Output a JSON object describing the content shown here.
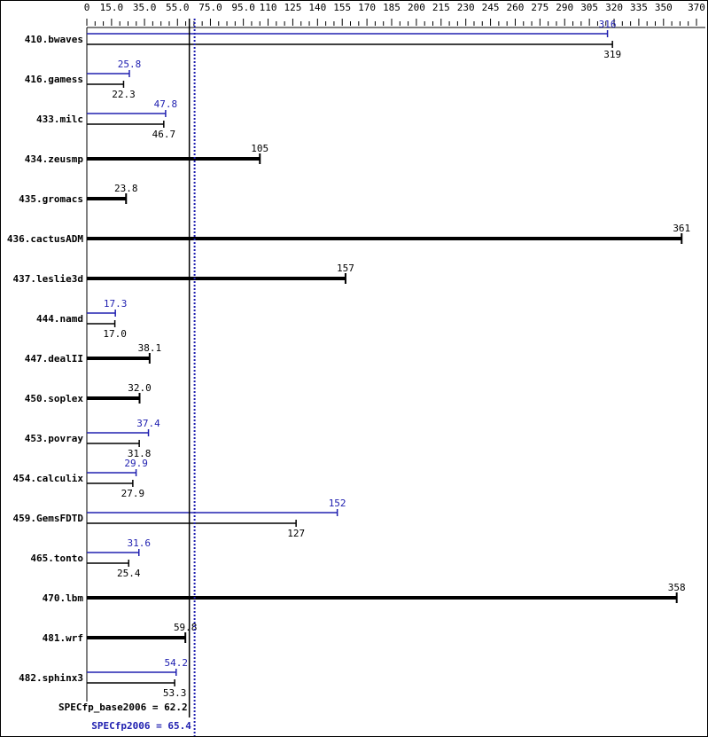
{
  "chart_data": {
    "type": "bar",
    "orientation": "horizontal",
    "xlim": [
      0,
      370
    ],
    "tick_labels": [
      "0",
      "15.0",
      "35.0",
      "55.0",
      "75.0",
      "95.0",
      "110",
      "125",
      "140",
      "155",
      "170",
      "185",
      "200",
      "215",
      "230",
      "245",
      "260",
      "275",
      "290",
      "305",
      "320",
      "335",
      "350",
      "370"
    ],
    "tick_values": [
      0,
      15,
      35,
      55,
      75,
      95,
      110,
      125,
      140,
      155,
      170,
      185,
      200,
      215,
      230,
      245,
      260,
      275,
      290,
      305,
      320,
      335,
      350,
      370
    ],
    "minor_tick_step": 5,
    "colors": {
      "base": "#000000",
      "peak": "#2020b0"
    },
    "categories": [
      "410.bwaves",
      "416.gamess",
      "433.milc",
      "434.zeusmp",
      "435.gromacs",
      "436.cactusADM",
      "437.leslie3d",
      "444.namd",
      "447.dealII",
      "450.soplex",
      "453.povray",
      "454.calculix",
      "459.GemsFDTD",
      "465.tonto",
      "470.lbm",
      "481.wrf",
      "482.sphinx3"
    ],
    "series": [
      {
        "name": "base",
        "values": [
          319,
          22.3,
          46.7,
          105,
          23.8,
          361,
          157,
          17.0,
          38.1,
          32.0,
          31.8,
          27.9,
          127,
          25.4,
          358,
          59.8,
          53.3
        ],
        "labels": [
          "319",
          "22.3",
          "46.7",
          "105",
          "23.8",
          "361",
          "157",
          "17.0",
          "38.1",
          "32.0",
          "31.8",
          "27.9",
          "127",
          "25.4",
          "358",
          "59.8",
          "53.3"
        ]
      },
      {
        "name": "peak",
        "values": [
          316,
          25.8,
          47.8,
          null,
          null,
          null,
          null,
          17.3,
          null,
          null,
          37.4,
          29.9,
          152,
          31.6,
          null,
          null,
          54.2
        ],
        "labels": [
          "316",
          "25.8",
          "47.8",
          null,
          null,
          null,
          null,
          "17.3",
          null,
          null,
          "37.4",
          "29.9",
          "152",
          "31.6",
          null,
          null,
          "54.2"
        ]
      }
    ],
    "reference_lines": [
      {
        "label": "SPECfp_base2006 = 62.2",
        "value": 62.2,
        "style": "solid",
        "color": "#000000"
      },
      {
        "label": "SPECfp2006 = 65.4",
        "value": 65.4,
        "style": "dotted",
        "color": "#2020b0"
      }
    ]
  }
}
